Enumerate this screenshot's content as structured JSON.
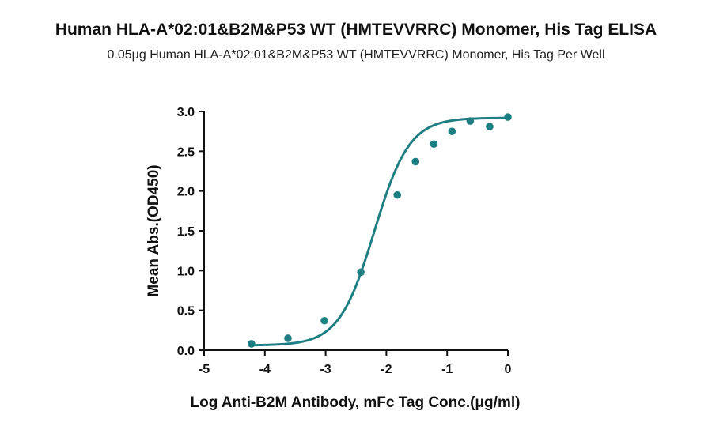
{
  "chart_data": {
    "type": "scatter",
    "title": "Human HLA-A*02:01&B2M&P53 WT (HMTEVVRRC) Monomer, His Tag ELISA",
    "subtitle": "0.05μg Human HLA-A*02:01&B2M&P53 WT (HMTEVVRRC) Monomer, His Tag Per Well",
    "xlabel": "Log Anti-B2M Antibody, mFc Tag Conc.(μg/ml)",
    "ylabel": "Mean Abs.(OD450)",
    "xlim": [
      -5,
      0
    ],
    "ylim": [
      0,
      3
    ],
    "x_ticks": [
      "-5",
      "-4",
      "-3",
      "-2",
      "-1",
      "0"
    ],
    "y_ticks": [
      "0.0",
      "0.5",
      "1.0",
      "1.5",
      "2.0",
      "2.5",
      "3.0"
    ],
    "grid": false,
    "series": [
      {
        "points": [
          {
            "x": -4.22,
            "y": 0.08
          },
          {
            "x": -3.62,
            "y": 0.15
          },
          {
            "x": -3.02,
            "y": 0.37
          },
          {
            "x": -2.42,
            "y": 0.98
          },
          {
            "x": -1.82,
            "y": 1.95
          },
          {
            "x": -1.52,
            "y": 2.37
          },
          {
            "x": -1.22,
            "y": 2.59
          },
          {
            "x": -0.92,
            "y": 2.75
          },
          {
            "x": -0.62,
            "y": 2.88
          },
          {
            "x": -0.3,
            "y": 2.81
          },
          {
            "x": 0.0,
            "y": 2.93
          }
        ],
        "fit": {
          "model": "4PL",
          "bottom": 0.06,
          "top": 2.92,
          "log_ec50": -2.2,
          "hill": 1.5
        },
        "color": "#1e7f82"
      }
    ]
  }
}
